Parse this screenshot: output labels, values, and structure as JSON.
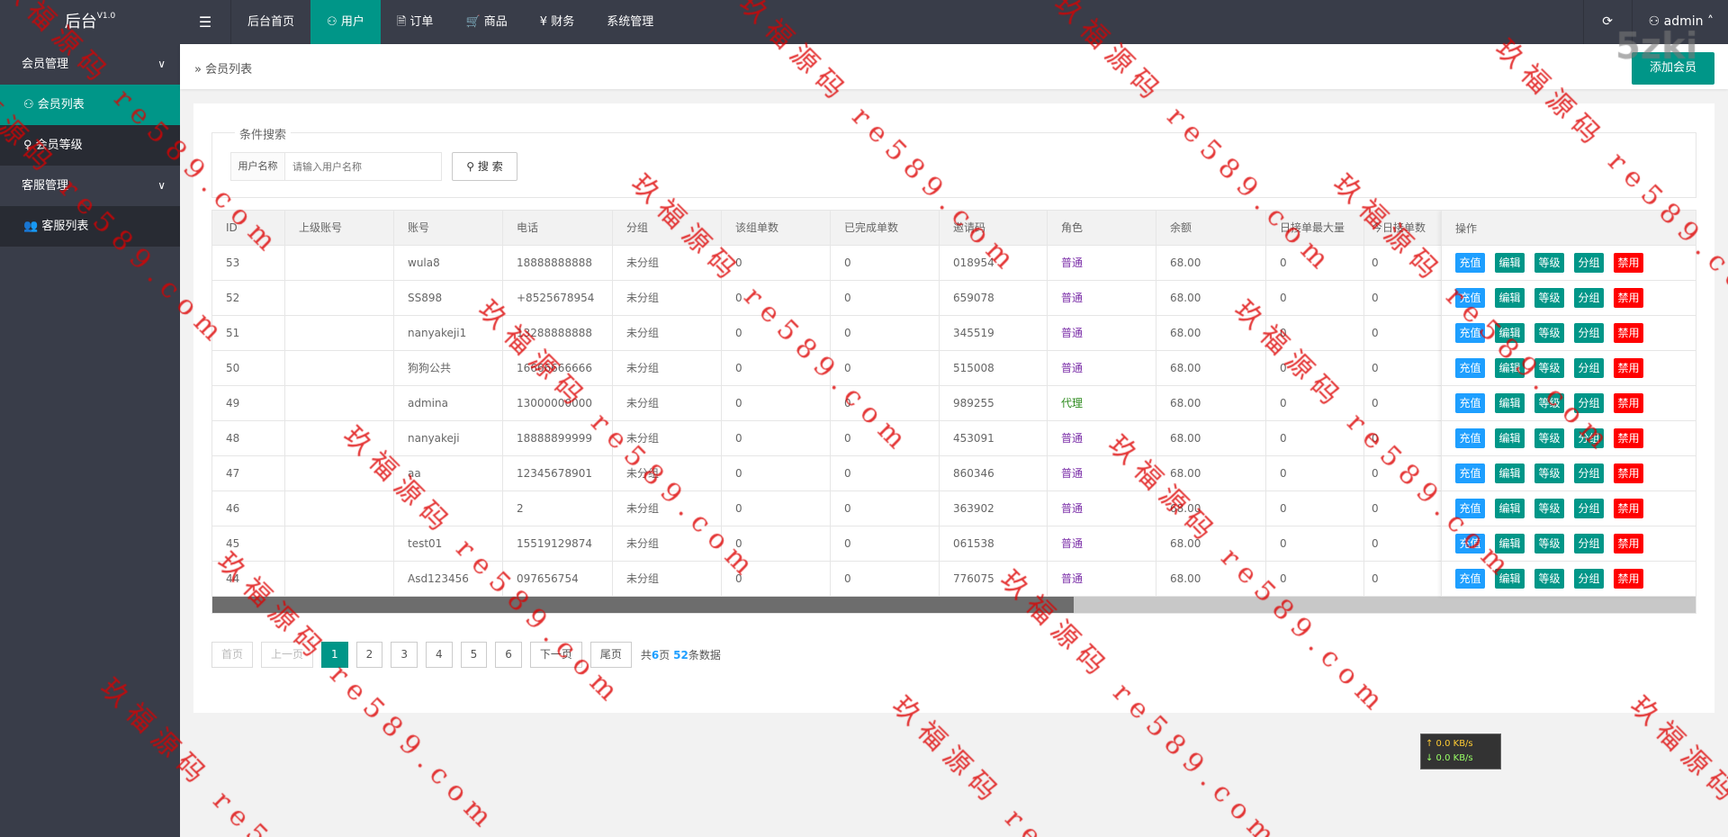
{
  "header": {
    "logo": "后台",
    "version": "V1.0",
    "menu_icon": "hamburger-icon",
    "nav": [
      {
        "label": "后台首页",
        "icon": ""
      },
      {
        "label": "用户",
        "icon": "user-icon",
        "active": true
      },
      {
        "label": "订单",
        "icon": "document-icon"
      },
      {
        "label": "商品",
        "icon": "cart-icon"
      },
      {
        "label": "财务",
        "icon": "yen-icon"
      },
      {
        "label": "系统管理",
        "icon": ""
      }
    ],
    "refresh_icon": "refresh-icon",
    "user": "admin"
  },
  "sidebar": {
    "groups": [
      {
        "label": "会员管理",
        "items": [
          {
            "label": "会员列表",
            "icon": "user-icon",
            "active": true
          },
          {
            "label": "会员等级",
            "icon": "medal-icon"
          }
        ]
      },
      {
        "label": "客服管理",
        "items": [
          {
            "label": "客服列表",
            "icon": "users-icon"
          }
        ]
      }
    ]
  },
  "breadcrumb": "会员列表",
  "add_button": "添加会员",
  "search": {
    "legend": "条件搜索",
    "label": "用户名称",
    "placeholder": "请输入用户名称",
    "value": "",
    "button": "搜 索"
  },
  "table": {
    "columns": [
      "ID",
      "上级账号",
      "账号",
      "电话",
      "分组",
      "该组单数",
      "已完成单数",
      "邀请码",
      "角色",
      "余额",
      "日接单最大量",
      "今日接单数"
    ],
    "ops_header": "操作",
    "actions": [
      "充值",
      "编辑",
      "等级",
      "分组",
      "禁用"
    ],
    "rows": [
      [
        "53",
        "",
        "wula8",
        "18888888888",
        "未分组",
        "0",
        "0",
        "018954",
        "普通",
        "68.00",
        "0",
        "0"
      ],
      [
        "52",
        "",
        "SS898",
        "+8525678954",
        "未分组",
        "0",
        "0",
        "659078",
        "普通",
        "68.00",
        "0",
        "0"
      ],
      [
        "51",
        "",
        "nanyakeji1",
        "13288888888",
        "未分组",
        "0",
        "0",
        "345519",
        "普通",
        "68.00",
        "0",
        "0"
      ],
      [
        "50",
        "",
        "狗狗公共",
        "16666666666",
        "未分组",
        "0",
        "0",
        "515008",
        "普通",
        "68.00",
        "0",
        "0"
      ],
      [
        "49",
        "",
        "admina",
        "13000000000",
        "未分组",
        "0",
        "0",
        "989255",
        "代理",
        "68.00",
        "0",
        "0"
      ],
      [
        "48",
        "",
        "nanyakeji",
        "18888899999",
        "未分组",
        "0",
        "0",
        "453091",
        "普通",
        "68.00",
        "0",
        "0"
      ],
      [
        "47",
        "",
        "aa",
        "12345678901",
        "未分组",
        "0",
        "0",
        "860346",
        "普通",
        "68.00",
        "0",
        "0"
      ],
      [
        "46",
        "",
        "",
        "2",
        "未分组",
        "0",
        "0",
        "363902",
        "普通",
        "68.00",
        "0",
        "0"
      ],
      [
        "45",
        "",
        "test01",
        "15519129874",
        "未分组",
        "0",
        "0",
        "061538",
        "普通",
        "68.00",
        "0",
        "0"
      ],
      [
        "44",
        "",
        "Asd123456",
        "097656754",
        "未分组",
        "0",
        "0",
        "776075",
        "普通",
        "68.00",
        "0",
        "0"
      ]
    ],
    "horizontal_scroll_fraction": 0.58
  },
  "pagination": {
    "first": "首页",
    "prev": "上一页",
    "pages": [
      "1",
      "2",
      "3",
      "4",
      "5",
      "6"
    ],
    "current": "1",
    "next": "下一页",
    "last": "尾页",
    "info_prefix": "共",
    "total_pages": "6",
    "info_mid": "页 ",
    "total_records": "52",
    "info_suffix": "条数据"
  },
  "speed": {
    "up": "↑ 0.0 KB/s",
    "down": "↓ 0.0 KB/s"
  },
  "colors": {
    "header": "#393d49",
    "accent": "#009688",
    "recharge": "#1e9fff",
    "disable": "#ff0000",
    "role_normal": "#7b2fa8",
    "role_agent": "#2e8b1f"
  },
  "watermark": "玖福源码 re589.com",
  "corner_watermark": "5zki"
}
